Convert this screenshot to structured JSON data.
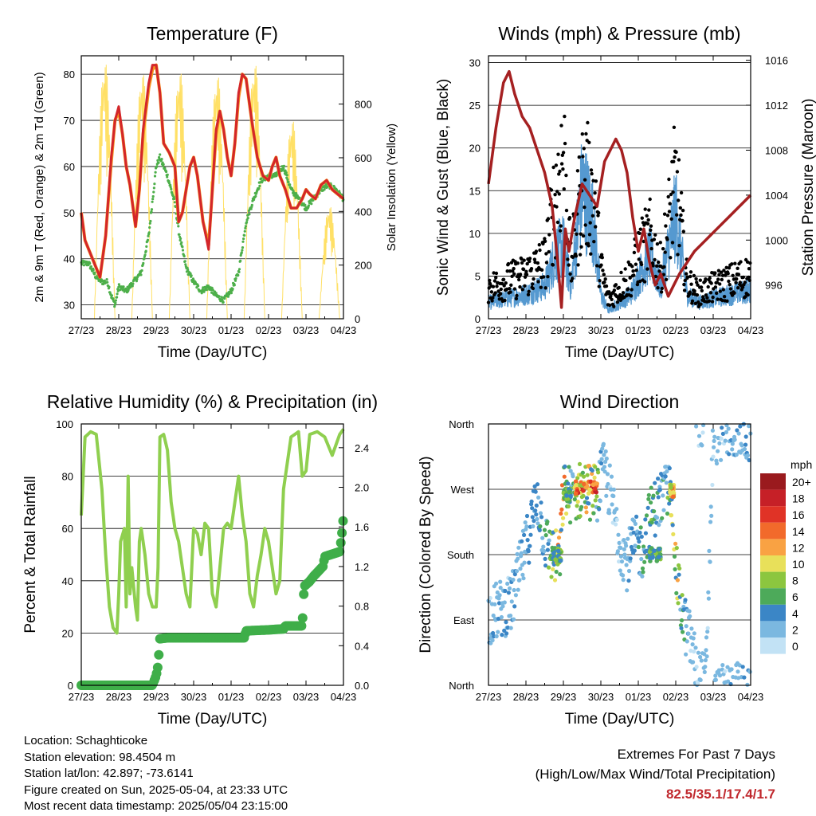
{
  "time_ticks": [
    "27/23",
    "28/23",
    "29/23",
    "30/23",
    "01/23",
    "02/23",
    "03/23",
    "04/23"
  ],
  "x_axis_title": "Time (Day/UTC)",
  "colors": {
    "temp_red": "#d3262a",
    "temp_orange": "#f7941d",
    "dewpoint_green": "#4daf4a",
    "solar_yellow": "#ffe066",
    "wind_blue": "#5599d0",
    "gust_black": "#000000",
    "pressure_maroon": "#a52021",
    "rh_light_green": "#8fcf4f",
    "precip_green": "#3fae49",
    "extremes_red": "#c0282d"
  },
  "chart_data": [
    {
      "id": "temperature",
      "type": "line",
      "title": "Temperature (F)",
      "xlabel": "Time (Day/UTC)",
      "ylabel": "2m & 9m T (Red, Orange) & 2m Td (Green)",
      "ylabel_right": "Solar Insolation (Yellow)",
      "ylim": [
        27,
        84
      ],
      "yticks": [
        30,
        40,
        50,
        60,
        70,
        80
      ],
      "ylim_right": [
        0,
        980
      ],
      "yticks_right": [
        0,
        200,
        400,
        600,
        800
      ],
      "series": [
        {
          "name": "2m T",
          "color": "#d3262a",
          "x": [
            0,
            0.1,
            0.3,
            0.5,
            0.65,
            0.8,
            0.9,
            1.0,
            1.1,
            1.2,
            1.3,
            1.45,
            1.55,
            1.65,
            1.8,
            1.9,
            2.0,
            2.1,
            2.2,
            2.35,
            2.5,
            2.6,
            2.7,
            2.8,
            2.9,
            3.0,
            3.1,
            3.25,
            3.4,
            3.5,
            3.6,
            3.7,
            3.8,
            3.9,
            4.0,
            4.1,
            4.2,
            4.3,
            4.4,
            4.55,
            4.7,
            4.85,
            5.0,
            5.1,
            5.2,
            5.3,
            5.45,
            5.6,
            5.75,
            5.9,
            6.0,
            6.1,
            6.25,
            6.4,
            6.55,
            6.7,
            6.85,
            7.0
          ],
          "y": [
            50,
            44,
            40,
            36,
            45,
            62,
            70,
            73,
            67,
            60,
            56,
            47,
            55,
            68,
            78,
            82,
            82,
            76,
            65,
            63,
            60,
            48,
            50,
            55,
            60,
            62,
            58,
            48,
            42,
            55,
            68,
            72,
            68,
            62,
            58,
            65,
            76,
            80,
            79,
            70,
            62,
            58,
            57,
            60,
            62,
            58,
            55,
            51,
            51,
            53,
            55,
            54,
            53,
            56,
            57,
            55,
            54,
            53
          ]
        },
        {
          "name": "9m T",
          "color": "#f7941d",
          "x": [
            0,
            0.1,
            0.3,
            0.5,
            0.65,
            0.8,
            0.9,
            1.0,
            1.1,
            1.2,
            1.3,
            1.45,
            1.55,
            1.65,
            1.8,
            1.9,
            2.0,
            2.1,
            2.2,
            2.35,
            2.5,
            2.6,
            2.7,
            2.8,
            2.9,
            3.0,
            3.1,
            3.25,
            3.4,
            3.5,
            3.6,
            3.7,
            3.8,
            3.9,
            4.0,
            4.1,
            4.2,
            4.3,
            4.4,
            4.55,
            4.7,
            4.85,
            5.0,
            5.1,
            5.2,
            5.3,
            5.45,
            5.6,
            5.75,
            5.9,
            6.0,
            6.1,
            6.25,
            6.4,
            6.55,
            6.7,
            6.85,
            7.0
          ],
          "y": [
            50,
            44,
            40,
            36,
            45,
            61,
            70,
            72,
            67,
            60,
            56,
            47,
            55,
            67,
            77,
            81,
            82,
            76,
            65,
            63,
            60,
            48,
            50,
            55,
            60,
            62,
            58,
            48,
            43,
            55,
            67,
            72,
            68,
            62,
            58,
            65,
            75,
            80,
            79,
            70,
            62,
            58,
            57,
            60,
            62,
            58,
            55,
            51,
            51,
            53,
            55,
            54,
            53,
            56,
            57,
            55,
            54,
            53
          ]
        },
        {
          "name": "2m Td",
          "color": "#4daf4a",
          "x": [
            0,
            0.2,
            0.4,
            0.55,
            0.7,
            0.8,
            0.9,
            1.0,
            1.2,
            1.4,
            1.6,
            1.8,
            2.0,
            2.1,
            2.3,
            2.5,
            2.6,
            2.8,
            3.0,
            3.2,
            3.4,
            3.6,
            3.8,
            4.0,
            4.2,
            4.4,
            4.6,
            4.8,
            5.0,
            5.2,
            5.4,
            5.6,
            5.8,
            6.0,
            6.2,
            6.4,
            6.6,
            6.8,
            7.0
          ],
          "y": [
            39,
            39,
            36,
            35,
            35,
            32,
            30,
            34,
            33,
            35,
            37,
            45,
            60,
            62,
            58,
            52,
            46,
            38,
            35,
            33,
            34,
            32,
            31,
            33,
            37,
            48,
            53,
            57,
            58,
            58,
            60,
            55,
            53,
            51,
            53,
            55,
            56,
            55,
            53
          ]
        },
        {
          "name": "Solar Insolation",
          "axis": "right",
          "color": "#ffe066",
          "x": [
            0.3,
            0.75,
            0.85,
            0.95,
            1.3,
            1.75,
            1.85,
            2.0,
            2.3,
            2.75,
            2.85,
            3.0,
            3.3,
            3.75,
            3.85,
            4.0,
            4.3,
            4.75,
            4.85,
            4.95,
            5.0,
            5.3,
            5.75,
            5.85,
            6.0,
            6.3,
            6.75,
            6.85,
            7.0
          ],
          "y": [
            0,
            0,
            960,
            0,
            0,
            0,
            900,
            0,
            0,
            0,
            940,
            0,
            0,
            0,
            920,
            0,
            0,
            0,
            980,
            900,
            0,
            0,
            0,
            400,
            0,
            0,
            0,
            420,
            0
          ],
          "days": [
            [
              0.35,
              0.9,
              980
            ],
            [
              1.35,
              1.9,
              940
            ],
            [
              2.35,
              2.9,
              945
            ],
            [
              3.35,
              3.9,
              930
            ],
            [
              4.35,
              4.9,
              975
            ],
            [
              5.35,
              5.9,
              760
            ],
            [
              6.35,
              6.9,
              430
            ]
          ]
        }
      ]
    },
    {
      "id": "winds",
      "type": "scatter",
      "title": "Winds (mph) & Pressure (mb)",
      "xlabel": "Time (Day/UTC)",
      "ylabel": "Sonic Wind & Gust (Blue, Black)",
      "ylabel_right": "Station Pressure (Maroon)",
      "ylim": [
        0,
        30.8
      ],
      "yticks": [
        0,
        5,
        10,
        15,
        20,
        25,
        30
      ],
      "ylim_right": [
        993,
        1016.4
      ],
      "yticks_right": [
        996,
        1000,
        1004,
        1008,
        1012,
        1016
      ],
      "series": [
        {
          "name": "Sonic Wind",
          "color": "#5599d0",
          "x": [
            0,
            0.5,
            1.0,
            1.5,
            1.8,
            2.0,
            2.2,
            2.5,
            2.8,
            3.0,
            3.2,
            3.5,
            3.8,
            4.0,
            4.3,
            4.6,
            5.0,
            5.3,
            5.6,
            6.0,
            6.5,
            7.0
          ],
          "y": [
            2,
            2.5,
            3,
            4,
            8,
            9,
            4,
            16,
            12,
            3,
            1,
            2,
            3,
            5,
            8,
            4,
            13,
            3,
            2,
            2.5,
            3,
            3.5
          ]
        },
        {
          "name": "Gust",
          "color": "#000000",
          "x": [
            0,
            0.5,
            1.0,
            1.5,
            1.8,
            2.0,
            2.2,
            2.5,
            2.8,
            3.0,
            3.2,
            3.5,
            3.8,
            4.0,
            4.3,
            4.6,
            5.0,
            5.3,
            5.6,
            6.0,
            6.5,
            7.0
          ],
          "y": [
            5,
            6,
            7,
            9,
            20,
            27,
            8,
            22,
            20,
            8,
            3,
            5,
            7,
            10,
            13,
            8,
            22,
            6,
            4,
            5,
            6,
            7
          ]
        },
        {
          "name": "Station Pressure",
          "axis": "right",
          "color": "#a52021",
          "x": [
            0,
            0.2,
            0.4,
            0.55,
            0.7,
            0.9,
            1.1,
            1.3,
            1.5,
            1.7,
            1.85,
            1.95,
            2.05,
            2.15,
            2.3,
            2.5,
            2.7,
            2.9,
            3.0,
            3.1,
            3.25,
            3.4,
            3.55,
            3.7,
            3.85,
            4.0,
            4.15,
            4.3,
            4.45,
            4.6,
            4.8,
            4.95,
            5.1,
            5.3,
            5.5,
            5.8,
            6.1,
            6.4,
            6.7,
            7.0
          ],
          "y": [
            1005,
            1010,
            1014,
            1015,
            1013,
            1011,
            1010,
            1008,
            1006,
            1003,
            998,
            994,
            1001,
            999,
            1002,
            1005,
            1004,
            1003,
            1005,
            1007,
            1008,
            1009,
            1008,
            1006,
            1002,
            999,
            1001,
            998,
            996,
            997,
            995,
            996,
            997,
            998,
            999,
            1000,
            1001,
            1002,
            1003,
            1004
          ]
        }
      ]
    },
    {
      "id": "humidity",
      "type": "line",
      "title": "Relative Humidity (%) & Precipitation (in)",
      "xlabel": "Time (Day/UTC)",
      "ylabel": "Percent & Total Rainfall",
      "ylim": [
        0,
        100
      ],
      "yticks": [
        0,
        20,
        40,
        60,
        80,
        100
      ],
      "ylim_right": [
        0,
        2.64
      ],
      "yticks_right": [
        "0.0",
        "0.4",
        "0.8",
        "1.2",
        "1.6",
        "2.0",
        "2.4"
      ],
      "series": [
        {
          "name": "Relative Humidity",
          "color": "#8fcf4f",
          "x": [
            0,
            0.1,
            0.25,
            0.4,
            0.55,
            0.65,
            0.75,
            0.85,
            0.95,
            1.0,
            1.05,
            1.15,
            1.2,
            1.25,
            1.3,
            1.35,
            1.45,
            1.5,
            1.55,
            1.6,
            1.7,
            1.8,
            1.9,
            2.0,
            2.05,
            2.1,
            2.2,
            2.3,
            2.4,
            2.5,
            2.6,
            2.7,
            2.8,
            2.9,
            3.0,
            3.1,
            3.2,
            3.3,
            3.4,
            3.5,
            3.6,
            3.7,
            3.8,
            3.9,
            4.0,
            4.1,
            4.2,
            4.3,
            4.4,
            4.5,
            4.6,
            4.7,
            4.8,
            4.9,
            5.0,
            5.1,
            5.2,
            5.3,
            5.4,
            5.5,
            5.6,
            5.7,
            5.8,
            5.9,
            6.0,
            6.1,
            6.3,
            6.5,
            6.7,
            6.9,
            7.0
          ],
          "y": [
            65,
            95,
            97,
            96,
            75,
            50,
            30,
            22,
            20,
            35,
            55,
            60,
            30,
            80,
            35,
            45,
            30,
            25,
            55,
            60,
            50,
            35,
            30,
            30,
            45,
            95,
            96,
            90,
            70,
            60,
            55,
            45,
            35,
            30,
            60,
            58,
            50,
            62,
            60,
            35,
            30,
            45,
            60,
            62,
            60,
            70,
            80,
            65,
            55,
            35,
            30,
            42,
            50,
            60,
            55,
            45,
            35,
            40,
            75,
            85,
            95,
            96,
            97,
            80,
            82,
            96,
            97,
            95,
            88,
            96,
            98
          ]
        },
        {
          "name": "Total Precipitation",
          "axis": "right",
          "color": "#3fae49",
          "x": [
            0,
            1.9,
            2.0,
            2.05,
            2.1,
            2.3,
            3.0,
            4.0,
            4.35,
            4.4,
            5.0,
            5.4,
            5.45,
            5.9,
            5.95,
            6.1,
            6.2,
            6.45,
            6.5,
            6.9,
            6.95,
            7.0
          ],
          "y": [
            0,
            0,
            0.1,
            0.2,
            0.47,
            0.48,
            0.48,
            0.48,
            0.48,
            0.55,
            0.56,
            0.57,
            0.6,
            0.6,
            1.0,
            1.05,
            1.1,
            1.2,
            1.3,
            1.35,
            1.5,
            1.7
          ]
        }
      ]
    },
    {
      "id": "wind_direction",
      "type": "scatter",
      "title": "Wind Direction",
      "xlabel": "Time (Day/UTC)",
      "ylabel": "Direction (Colored By Speed)",
      "yticks": [
        "North",
        "East",
        "South",
        "West",
        "North"
      ],
      "ylim": [
        0,
        360
      ],
      "legend": {
        "title": "mph",
        "labels": [
          "20+",
          "18",
          "16",
          "14",
          "12",
          "10",
          "8",
          "6",
          "4",
          "2",
          "0"
        ],
        "colors": [
          "#9a1a1e",
          "#c62027",
          "#e03326",
          "#f26a2b",
          "#f9a243",
          "#e8e05a",
          "#8cc63f",
          "#4daa5a",
          "#3b86c6",
          "#7bb8e0",
          "#c2e2f5"
        ]
      },
      "series": [
        {
          "name": "Direction",
          "x": [
            0,
            0.3,
            0.6,
            0.8,
            1.0,
            1.3,
            1.5,
            1.7,
            1.8,
            1.9,
            2.0,
            2.1,
            2.3,
            2.5,
            2.7,
            2.9,
            3.1,
            3.3,
            3.5,
            3.7,
            3.9,
            4.1,
            4.3,
            4.5,
            4.7,
            4.9,
            5.0,
            5.2,
            5.4,
            5.6,
            5.8,
            6.0,
            6.3,
            6.6,
            7.0
          ],
          "y": [
            95,
            105,
            110,
            150,
            190,
            260,
            200,
            180,
            175,
            170,
            270,
            265,
            260,
            272,
            268,
            265,
            300,
            250,
            200,
            170,
            195,
            185,
            230,
            250,
            265,
            270,
            160,
            90,
            60,
            10,
            5,
            340,
            350,
            355,
            340
          ]
        }
      ]
    }
  ],
  "info": {
    "location": "Location: Schaghticoke",
    "elevation": "Station elevation: 98.4504 m",
    "latlon": "Station lat/lon: 42.897; -73.6141",
    "created": "Figure created on Sun, 2025-05-04, at 23:33 UTC",
    "recent": "Most recent data timestamp: 2025/05/04 23:15:00"
  },
  "extremes": {
    "title": "Extremes For Past 7 Days",
    "subtitle": "(High/Low/Max Wind/Total Precipitation)",
    "values": "82.5/35.1/17.4/1.7"
  }
}
